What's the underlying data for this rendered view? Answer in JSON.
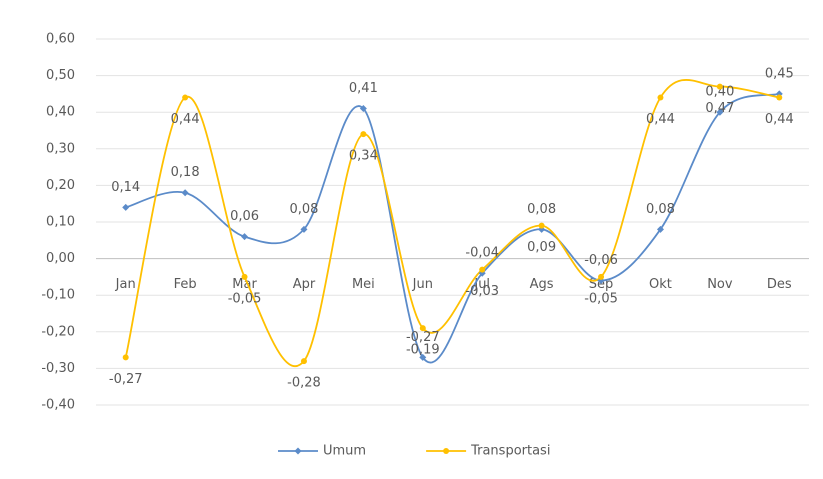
{
  "chart_data": {
    "type": "line",
    "categories": [
      "Jan",
      "Feb",
      "Mar",
      "Apr",
      "Mei",
      "Jun",
      "Jul",
      "Ags",
      "Sep",
      "Okt",
      "Nov",
      "Des"
    ],
    "series": [
      {
        "name": "Umum",
        "color": "#5b8bc9",
        "values": [
          0.14,
          0.18,
          0.06,
          0.08,
          0.41,
          -0.27,
          -0.04,
          0.08,
          -0.06,
          0.08,
          0.4,
          0.45
        ],
        "value_labels": [
          "0,14",
          "0,18",
          "0,06",
          "0,08",
          "0,41",
          "-0,27",
          "-0,04",
          "0,08",
          "-0,06",
          "0,08",
          "0,40",
          "0,45"
        ]
      },
      {
        "name": "Transportasi",
        "color": "#ffc000",
        "values": [
          -0.27,
          0.44,
          -0.05,
          -0.28,
          0.34,
          -0.19,
          -0.03,
          0.09,
          -0.05,
          0.44,
          0.47,
          0.44
        ],
        "value_labels": [
          "-0,27",
          "0,44",
          "-0,05",
          "-0,28",
          "0,34",
          "-0,19",
          "-0,03",
          "0,09",
          "-0,05",
          "0,44",
          "0,47",
          "0,44"
        ]
      }
    ],
    "ylim": [
      -0.4,
      0.6
    ],
    "yticks": [
      {
        "value": -0.4,
        "label": "-0,40"
      },
      {
        "value": -0.3,
        "label": "-0,30"
      },
      {
        "value": -0.2,
        "label": "-0,20"
      },
      {
        "value": -0.1,
        "label": "-0,10"
      },
      {
        "value": 0,
        "label": "0,00"
      },
      {
        "value": 0.1,
        "label": "0,10"
      },
      {
        "value": 0.2,
        "label": "0,20"
      },
      {
        "value": 0.3,
        "label": "0,30"
      },
      {
        "value": 0.4,
        "label": "0,40"
      },
      {
        "value": 0.5,
        "label": "0,50"
      },
      {
        "value": 0.6,
        "label": "0,60"
      }
    ],
    "grid": true,
    "smooth": true,
    "legend": "bottom"
  }
}
